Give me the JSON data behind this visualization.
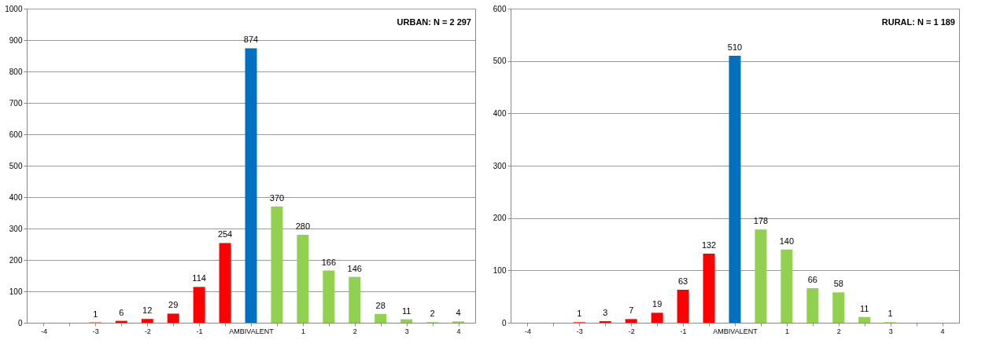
{
  "chart_data": [
    {
      "type": "bar",
      "categories": [
        "-4",
        null,
        "-3",
        null,
        "-2",
        null,
        "-1",
        null,
        "AMBIVALENT",
        null,
        "1",
        null,
        "2",
        null,
        "3",
        null,
        "4"
      ],
      "values": [
        null,
        null,
        1,
        6,
        12,
        29,
        114,
        254,
        874,
        370,
        280,
        166,
        146,
        28,
        11,
        2,
        4
      ],
      "colors": [
        "#ff0000",
        "#ff0000",
        "#ff0000",
        "#ff0000",
        "#ff0000",
        "#ff0000",
        "#ff0000",
        "#ff0000",
        "#0070c0",
        "#92d050",
        "#92d050",
        "#92d050",
        "#92d050",
        "#92d050",
        "#92d050",
        "#92d050",
        "#92d050"
      ],
      "ylim": [
        0,
        1000
      ],
      "yticks": [
        0,
        100,
        200,
        300,
        400,
        500,
        600,
        700,
        800,
        900,
        1000
      ],
      "grid": "y",
      "legend": false,
      "data_labels": true,
      "annotations": [
        "URBAN: N = 2 297"
      ]
    },
    {
      "type": "bar",
      "categories": [
        "-4",
        null,
        "-3",
        null,
        "-2",
        null,
        "-1",
        null,
        "AMBIVALENT",
        null,
        "1",
        null,
        "2",
        null,
        "3",
        null,
        "4"
      ],
      "values": [
        null,
        null,
        1,
        3,
        7,
        19,
        63,
        132,
        510,
        178,
        140,
        66,
        58,
        11,
        1,
        null,
        null
      ],
      "colors": [
        "#ff0000",
        "#ff0000",
        "#ff0000",
        "#ff0000",
        "#ff0000",
        "#ff0000",
        "#ff0000",
        "#ff0000",
        "#0070c0",
        "#92d050",
        "#92d050",
        "#92d050",
        "#92d050",
        "#92d050",
        "#92d050",
        "#92d050",
        "#92d050"
      ],
      "ylim": [
        0,
        600
      ],
      "yticks": [
        0,
        100,
        200,
        300,
        400,
        500,
        600
      ],
      "grid": "y",
      "legend": false,
      "data_labels": true,
      "annotations": [
        "RURAL: N = 1 189"
      ]
    }
  ]
}
